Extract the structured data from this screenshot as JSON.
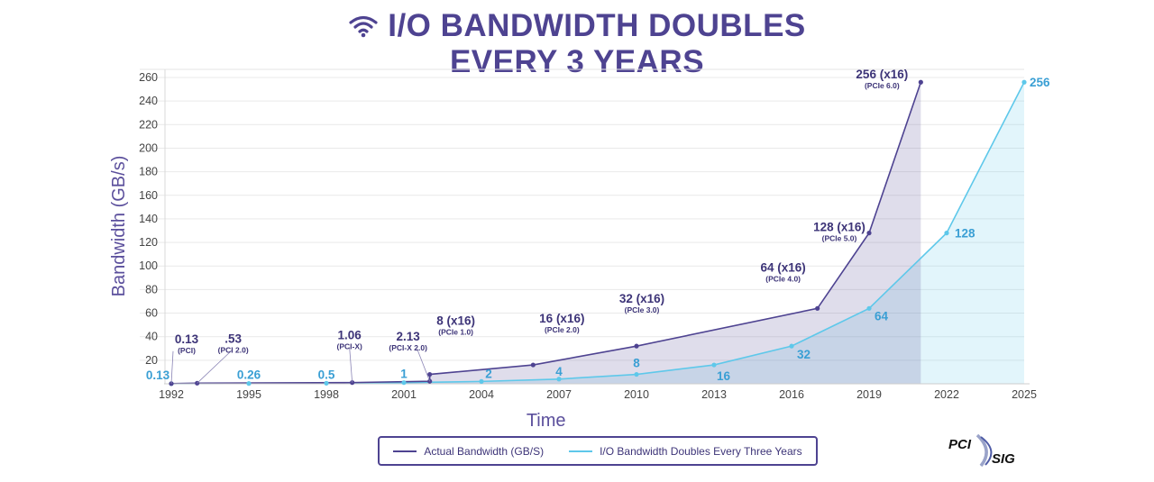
{
  "title": {
    "line1": "I/O BANDWIDTH DOUBLES",
    "line2": "EVERY 3 YEARS",
    "icon": "wifi-icon"
  },
  "logo": {
    "top": "PCI",
    "bottom": "SIG",
    "icon": "pci-sig-logo"
  },
  "colors": {
    "actual": "#4e4391",
    "theory": "#5ec8ea",
    "title": "#4e4391"
  },
  "legend": {
    "actual_label": "Actual Bandwidth (GB/S)",
    "theory_label": "I/O Bandwidth Doubles Every Three Years"
  },
  "chart_data": {
    "type": "line",
    "xlabel": "Time",
    "ylabel": "Bandwidth (GB/s)",
    "xlim": [
      1992,
      2025
    ],
    "ylim": [
      0,
      260
    ],
    "x_ticks": [
      "1992",
      "1995",
      "1998",
      "2001",
      "2004",
      "2007",
      "2010",
      "2013",
      "2016",
      "2019",
      "2022",
      "2025"
    ],
    "y_ticks": [
      "20",
      "40",
      "60",
      "80",
      "100",
      "120",
      "140",
      "160",
      "180",
      "200",
      "220",
      "240",
      "260"
    ],
    "grid": "horizontal",
    "legend_position": "bottom-center",
    "series": [
      {
        "name": "Actual Bandwidth (GB/S)",
        "points": [
          {
            "x": 1992,
            "y": 0.13,
            "label": "0.13",
            "sub": "(PCI)"
          },
          {
            "x": 1993,
            "y": 0.53,
            "label": ".53",
            "sub": "(PCI 2.0)"
          },
          {
            "x": 1999,
            "y": 1.06,
            "label": "1.06",
            "sub": "(PCI-X)"
          },
          {
            "x": 2002,
            "y": 2.13,
            "label": "2.13",
            "sub": "(PCI-X 2.0)"
          },
          {
            "x": 2002,
            "y": 8,
            "label": "8 (x16)",
            "sub": "(PCIe 1.0)"
          },
          {
            "x": 2006,
            "y": 16,
            "label": "16 (x16)",
            "sub": "(PCIe 2.0)"
          },
          {
            "x": 2010,
            "y": 32,
            "label": "32 (x16)",
            "sub": "(PCIe 3.0)"
          },
          {
            "x": 2017,
            "y": 64,
            "label": "64 (x16)",
            "sub": "(PCIe 4.0)"
          },
          {
            "x": 2019,
            "y": 128,
            "label": "128 (x16)",
            "sub": "(PCIe 5.0)"
          },
          {
            "x": 2021,
            "y": 256,
            "label": "256 (x16)",
            "sub": "(PCIe 6.0)"
          }
        ]
      },
      {
        "name": "I/O Bandwidth Doubles Every Three Years",
        "points": [
          {
            "x": 1992,
            "y": 0.13,
            "label": "0.13"
          },
          {
            "x": 1995,
            "y": 0.26,
            "label": "0.26"
          },
          {
            "x": 1998,
            "y": 0.5,
            "label": "0.5"
          },
          {
            "x": 2001,
            "y": 1,
            "label": "1"
          },
          {
            "x": 2004,
            "y": 2,
            "label": "2"
          },
          {
            "x": 2007,
            "y": 4,
            "label": "4"
          },
          {
            "x": 2010,
            "y": 8,
            "label": "8"
          },
          {
            "x": 2013,
            "y": 16,
            "label": "16"
          },
          {
            "x": 2016,
            "y": 32,
            "label": "32"
          },
          {
            "x": 2019,
            "y": 64,
            "label": "64"
          },
          {
            "x": 2022,
            "y": 128,
            "label": "128"
          },
          {
            "x": 2025,
            "y": 256,
            "label": "256"
          }
        ]
      }
    ]
  }
}
